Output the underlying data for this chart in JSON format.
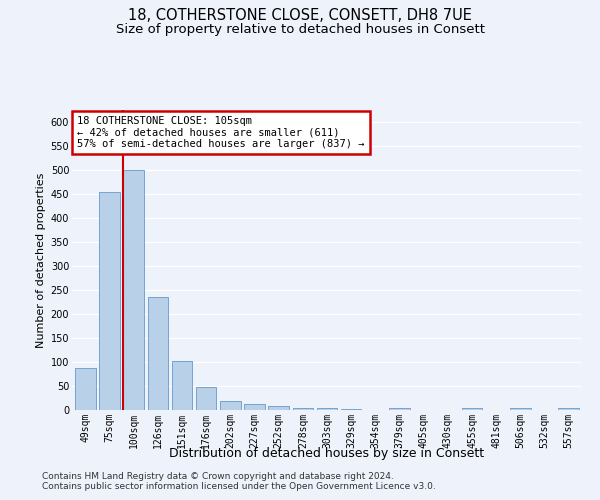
{
  "title1": "18, COTHERSTONE CLOSE, CONSETT, DH8 7UE",
  "title2": "Size of property relative to detached houses in Consett",
  "xlabel": "Distribution of detached houses by size in Consett",
  "ylabel": "Number of detached properties",
  "categories": [
    "49sqm",
    "75sqm",
    "100sqm",
    "126sqm",
    "151sqm",
    "176sqm",
    "202sqm",
    "227sqm",
    "252sqm",
    "278sqm",
    "303sqm",
    "329sqm",
    "354sqm",
    "379sqm",
    "405sqm",
    "430sqm",
    "455sqm",
    "481sqm",
    "506sqm",
    "532sqm",
    "557sqm"
  ],
  "values": [
    88,
    455,
    500,
    235,
    103,
    47,
    18,
    12,
    8,
    5,
    5,
    3,
    0,
    5,
    0,
    0,
    5,
    0,
    5,
    0,
    5
  ],
  "bar_color": "#b8d0e8",
  "bar_edge_color": "#6699cc",
  "annotation_text": "18 COTHERSTONE CLOSE: 105sqm\n← 42% of detached houses are smaller (611)\n57% of semi-detached houses are larger (837) →",
  "annotation_box_color": "#ffffff",
  "annotation_box_edge_color": "#cc0000",
  "red_line_x": 1.58,
  "ylim": [
    0,
    625
  ],
  "yticks": [
    0,
    50,
    100,
    150,
    200,
    250,
    300,
    350,
    400,
    450,
    500,
    550,
    600
  ],
  "footer1": "Contains HM Land Registry data © Crown copyright and database right 2024.",
  "footer2": "Contains public sector information licensed under the Open Government Licence v3.0.",
  "background_color": "#eef2fb",
  "grid_color": "#ffffff",
  "title1_fontsize": 10.5,
  "title2_fontsize": 9.5,
  "tick_fontsize": 7,
  "ylabel_fontsize": 8,
  "xlabel_fontsize": 9,
  "footer_fontsize": 6.5
}
